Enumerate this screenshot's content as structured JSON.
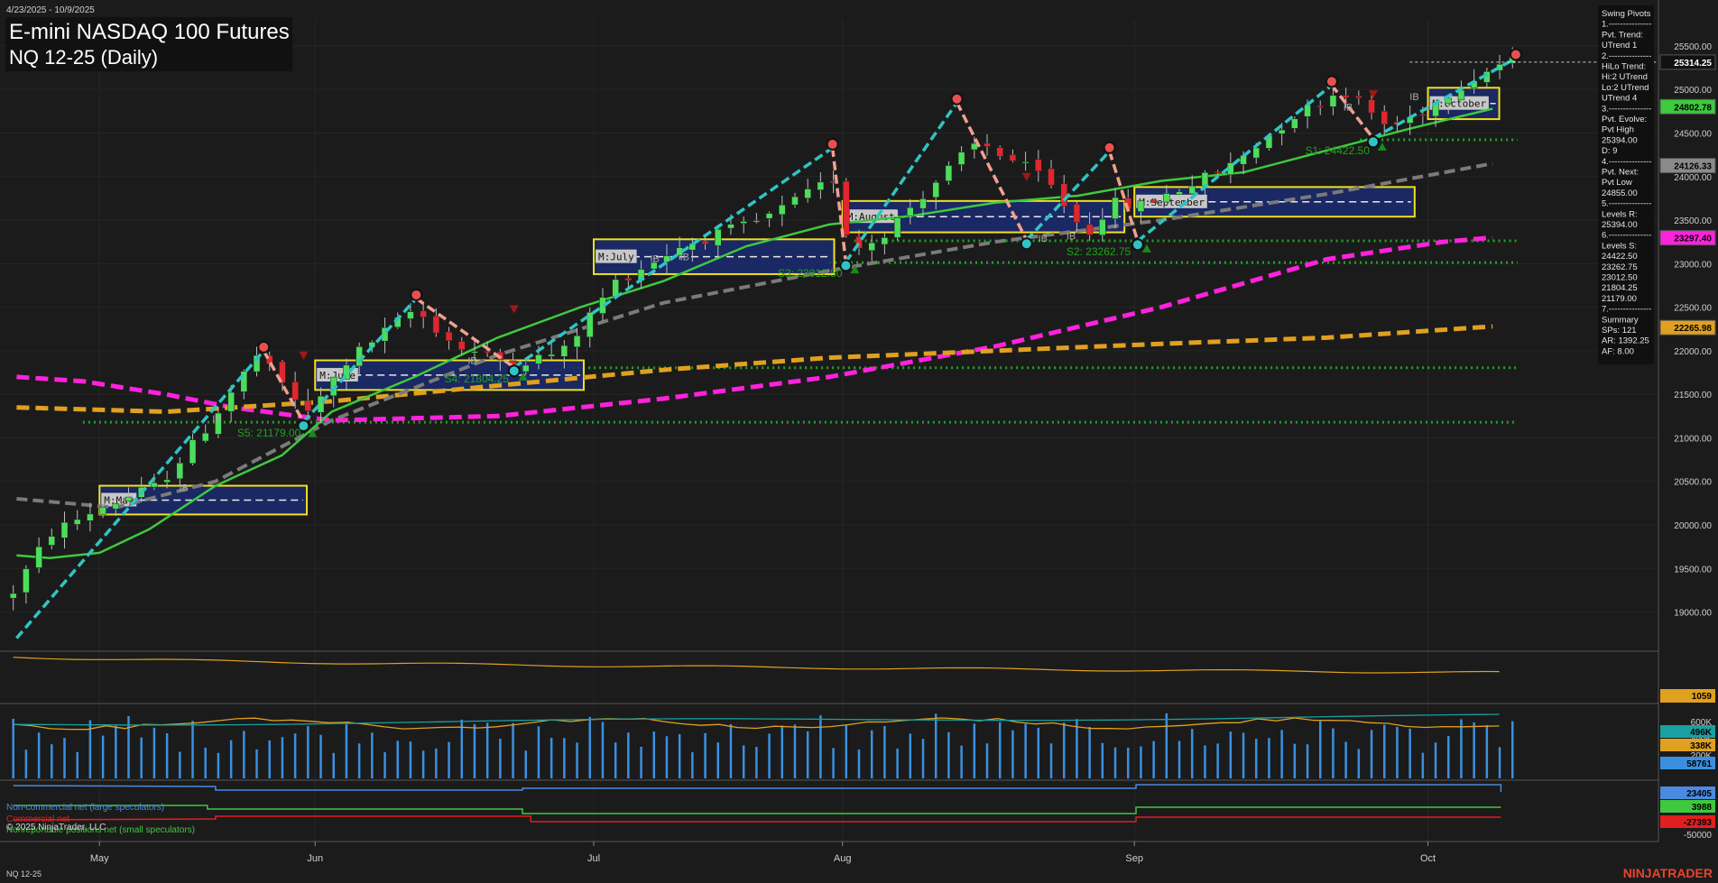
{
  "header": {
    "date_range": "4/23/2025 - 10/9/2025",
    "title": "E-mini NASDAQ 100 Futures",
    "subtitle": "NQ 12-25 (Daily)",
    "footer_symbol": "NQ 12-25",
    "copyright": "© 2025 NinjaTrader, LLC",
    "brand": "NINJATRADER"
  },
  "colors": {
    "background": "#1b1b1b",
    "up_candle": "#4ade5a",
    "down_candle": "#e0262f",
    "sma_fast": "#3ec93e",
    "sma_mid": "#7a7a7a",
    "sma_slow": "#e0a020",
    "magenta_ma": "#ff22dd",
    "swing_line": "#2fc4c4",
    "swing_down_line": "#f0a090",
    "box_border": "#f0e020",
    "box_fill": "#1a2a70"
  },
  "chart_data": [
    {
      "type": "candlestick",
      "name": "price",
      "y_axis_ticks": [
        25500,
        25000,
        24500,
        24000,
        23500,
        23000,
        22500,
        22000,
        21500,
        21000,
        20500,
        20000,
        19500,
        19000
      ],
      "y_labels": [
        "25500.00",
        "25000.00",
        "24500.00",
        "24000.00",
        "23500.00",
        "23000.00",
        "22500.00",
        "22000.00",
        "21500.00",
        "21000.00",
        "20500.00",
        "20000.00",
        "19500.00",
        "19000.00"
      ],
      "ylim": [
        18550,
        25800
      ],
      "x_month_labels": [
        "May",
        "Jun",
        "Jul",
        "Aug",
        "Sep",
        "Oct"
      ],
      "badges": [
        {
          "label": "25314.25",
          "value": 25314.25,
          "color": "#111111",
          "text_color": "#ffffff"
        },
        {
          "label": "24802.78",
          "value": 24802.78,
          "color": "#3ec93e",
          "text_color": "#000000"
        },
        {
          "label": "24126.33",
          "value": 24126.33,
          "color": "#8a8a8a",
          "text_color": "#000000"
        },
        {
          "label": "23297.40",
          "value": 23297.4,
          "color": "#ff22dd",
          "text_color": "#000000"
        },
        {
          "label": "22265.98",
          "value": 22265.98,
          "color": "#e0a020",
          "text_color": "#000000"
        }
      ],
      "period_boxes": [
        {
          "label": "M:May",
          "start": 0.06,
          "end": 0.185,
          "top": 20450,
          "bottom": 20120
        },
        {
          "label": "M:June",
          "start": 0.19,
          "end": 0.352,
          "top": 21890,
          "bottom": 21550
        },
        {
          "label": "M:July",
          "start": 0.358,
          "end": 0.503,
          "top": 23280,
          "bottom": 22880
        },
        {
          "label": "M:August",
          "start": 0.508,
          "end": 0.678,
          "top": 23720,
          "bottom": 23360
        },
        {
          "label": "M:September",
          "start": 0.684,
          "end": 0.853,
          "top": 23880,
          "bottom": 23540
        },
        {
          "label": "M:October",
          "start": 0.861,
          "end": 0.904,
          "top": 25020,
          "bottom": 24660
        }
      ],
      "support_levels": [
        {
          "label": "S1: 24422.50",
          "value": 24422.5
        },
        {
          "label": "S2: 23262.75",
          "value": 23262.75
        },
        {
          "label": "S3: 23012.50",
          "value": 23012.5
        },
        {
          "label": "S4: 21804.25",
          "value": 21804.25
        },
        {
          "label": "S5: 21179.00",
          "value": 21179.0
        }
      ],
      "ib_label": "IB"
    },
    {
      "type": "line",
      "name": "oscillator",
      "badge": "1059"
    },
    {
      "type": "bar",
      "name": "volume",
      "y_labels": [
        "600K",
        "400K",
        "200K"
      ],
      "badges": [
        {
          "label": "496K",
          "color": "#1aa0a0"
        },
        {
          "label": "338K",
          "color": "#e0a020"
        },
        {
          "label": "58761",
          "color": "#3a90e0"
        }
      ]
    },
    {
      "type": "line",
      "name": "cot",
      "legend": [
        {
          "label": "Non-commercial net (large speculators)",
          "color": "#4a8ae0"
        },
        {
          "label": "Commercial net",
          "color": "#e02020"
        },
        {
          "label": "Nonreportable positions net (small speculators)",
          "color": "#3ec93e"
        }
      ],
      "badges": [
        {
          "label": "23405",
          "color": "#4a8ae0"
        },
        {
          "label": "3988",
          "color": "#3ec93e"
        },
        {
          "label": "-27393",
          "color": "#e02020"
        }
      ],
      "y_labels": [
        "-50000"
      ]
    }
  ],
  "swing_panel": {
    "lines": [
      "Swing Pivots",
      "1.---------------",
      "Pvt. Trend:",
      "UTrend 1",
      "2.---------------",
      "HiLo Trend:",
      "Hi:2 UTrend",
      "Lo:2 UTrend",
      "UTrend 4",
      "3.---------------",
      "Pvt. Evolve:",
      "Pvt High",
      "25394.00",
      "D: 9",
      "4.---------------",
      "Pvt. Next:",
      "Pvt Low",
      "24855.00",
      "5.---------------",
      "Levels R:",
      "25394.00",
      "6.---------------",
      "Levels S:",
      "24422.50",
      "23262.75",
      "23012.50",
      "21804.25",
      "21179.00",
      "7.---------------",
      "Summary",
      "SPs: 121",
      "AR: 1392.25",
      "AF: 8.00"
    ]
  }
}
